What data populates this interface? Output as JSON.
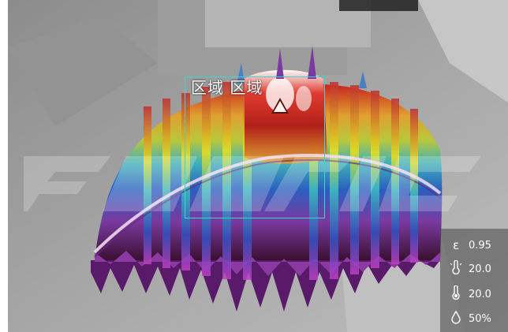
{
  "viewer": {
    "roi": {
      "label": "区域 区域"
    },
    "hot_marker": {
      "kind": "max-temperature"
    }
  },
  "params": {
    "emissivity": {
      "icon": "epsilon-icon",
      "symbol": "ε",
      "value": "0.95"
    },
    "reflected_temp": {
      "icon": "reflected-temperature-icon",
      "value": "20.0"
    },
    "ambient_temp": {
      "icon": "thermometer-icon",
      "value": "20.0"
    },
    "humidity": {
      "icon": "humidity-drop-icon",
      "value": "50%"
    }
  },
  "colors": {
    "roi_border": "#3fd3d0",
    "panel_bg": "#464646",
    "palette_hot": "#c8201e",
    "palette_cold": "#6b2a8a"
  }
}
